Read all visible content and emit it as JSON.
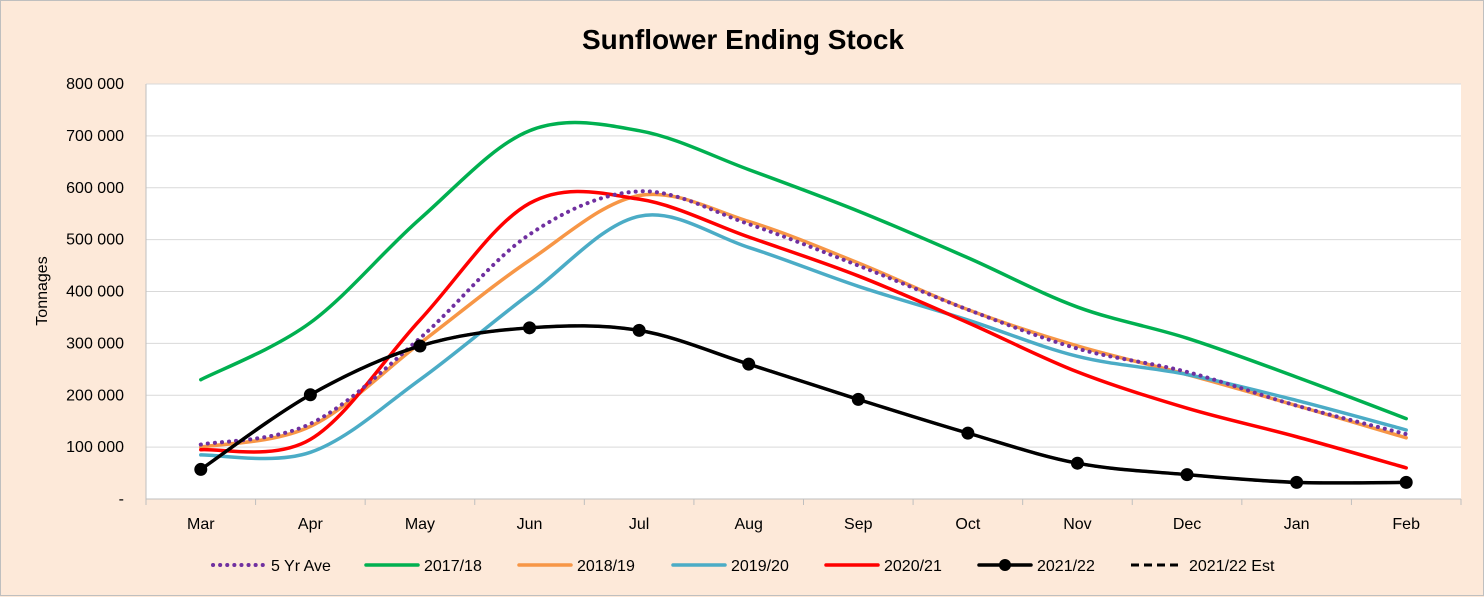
{
  "chart_data": {
    "type": "line",
    "title": "Sunflower Ending Stock",
    "xlabel": "",
    "ylabel": "Tonnages",
    "ylim": [
      0,
      800000
    ],
    "yticks": [
      0,
      100000,
      200000,
      300000,
      400000,
      500000,
      600000,
      700000,
      800000
    ],
    "ytick_labels": [
      "-",
      "100 000",
      "200 000",
      "300 000",
      "400 000",
      "500 000",
      "600 000",
      "700 000",
      "800 000"
    ],
    "categories": [
      "Mar",
      "Apr",
      "May",
      "Jun",
      "Jul",
      "Aug",
      "Sep",
      "Oct",
      "Nov",
      "Dec",
      "Jan",
      "Feb"
    ],
    "grid": "horizontal",
    "legend_position": "bottom",
    "series": [
      {
        "name": "5 Yr Ave",
        "color": "#7030a0",
        "style": "dotted",
        "markers": false,
        "values": [
          105000,
          145000,
          310000,
          510000,
          593000,
          530000,
          450000,
          365000,
          290000,
          245000,
          180000,
          125000
        ]
      },
      {
        "name": "2017/18",
        "color": "#00b050",
        "style": "solid",
        "markers": false,
        "values": [
          230000,
          340000,
          540000,
          710000,
          710000,
          635000,
          555000,
          465000,
          370000,
          310000,
          235000,
          155000
        ]
      },
      {
        "name": "2018/19",
        "color": "#f79646",
        "style": "solid",
        "markers": false,
        "values": [
          100000,
          140000,
          300000,
          460000,
          585000,
          535000,
          455000,
          365000,
          295000,
          240000,
          180000,
          118000
        ]
      },
      {
        "name": "2019/20",
        "color": "#4bacc6",
        "style": "solid",
        "markers": false,
        "values": [
          85000,
          90000,
          230000,
          395000,
          545000,
          485000,
          410000,
          345000,
          275000,
          240000,
          190000,
          133000
        ]
      },
      {
        "name": "2020/21",
        "color": "#ff0000",
        "style": "solid",
        "markers": false,
        "values": [
          95000,
          115000,
          345000,
          570000,
          578000,
          505000,
          430000,
          340000,
          245000,
          175000,
          120000,
          60000
        ]
      },
      {
        "name": "2021/22",
        "color": "#000000",
        "style": "solid",
        "markers": true,
        "values": [
          57000,
          201000,
          295000,
          330000,
          325000,
          260000,
          192000,
          127000,
          69000,
          47000,
          32000,
          32000
        ]
      },
      {
        "name": "2021/22 Est",
        "color": "#000000",
        "style": "dashed",
        "markers": false,
        "values": [
          57000,
          201000,
          295000,
          330000,
          325000,
          260000,
          192000,
          127000,
          69000,
          47000,
          32000,
          32000
        ]
      }
    ]
  }
}
